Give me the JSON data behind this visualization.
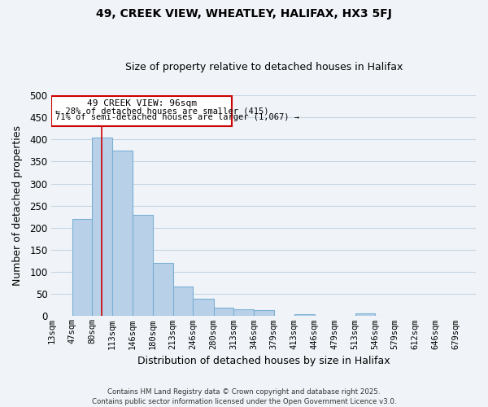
{
  "title": "49, CREEK VIEW, WHEATLEY, HALIFAX, HX3 5FJ",
  "subtitle": "Size of property relative to detached houses in Halifax",
  "xlabel": "Distribution of detached houses by size in Halifax",
  "ylabel": "Number of detached properties",
  "bar_labels": [
    "13sqm",
    "47sqm",
    "80sqm",
    "113sqm",
    "146sqm",
    "180sqm",
    "213sqm",
    "246sqm",
    "280sqm",
    "313sqm",
    "346sqm",
    "379sqm",
    "413sqm",
    "446sqm",
    "479sqm",
    "513sqm",
    "546sqm",
    "579sqm",
    "612sqm",
    "646sqm",
    "679sqm"
  ],
  "bar_values": [
    0,
    220,
    405,
    375,
    230,
    120,
    67,
    40,
    20,
    15,
    13,
    0,
    5,
    0,
    0,
    7,
    0,
    0,
    0,
    0,
    0
  ],
  "bar_color": "#b8d0e8",
  "bar_edge_color": "#7aafd4",
  "ylim": [
    0,
    500
  ],
  "yticks": [
    0,
    50,
    100,
    150,
    200,
    250,
    300,
    350,
    400,
    450,
    500
  ],
  "property_line_x": 96,
  "annotation_title": "49 CREEK VIEW: 96sqm",
  "annotation_line1": "← 28% of detached houses are smaller (415)",
  "annotation_line2": "71% of semi-detached houses are larger (1,067) →",
  "annotation_box_color": "#cc0000",
  "footer_line1": "Contains HM Land Registry data © Crown copyright and database right 2025.",
  "footer_line2": "Contains public sector information licensed under the Open Government Licence v3.0.",
  "bg_color": "#f0f4f8",
  "grid_color": "#c8d4e4"
}
